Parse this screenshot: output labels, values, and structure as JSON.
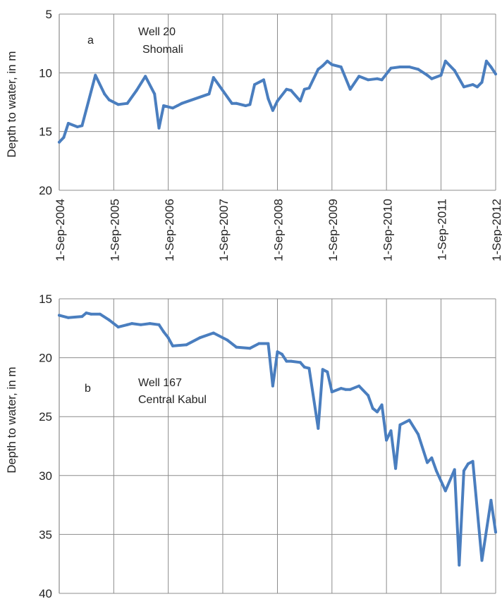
{
  "chart_data": [
    {
      "type": "line",
      "panel_letter": "a",
      "annotation": [
        "Well 20",
        "Shomali"
      ],
      "ylabel": "Depth to water, in m",
      "ylim": [
        5,
        20
      ],
      "y_inverted": true,
      "yticks": [
        5,
        10,
        15,
        20
      ],
      "ytick_labels": [
        "5",
        "10",
        "15",
        "20"
      ],
      "xlim": [
        "2004-09-01",
        "2012-09-01"
      ],
      "xtick_labels": [
        "1-Sep-2004",
        "1-Sep-2005",
        "1-Sep-2006",
        "1-Sep-2007",
        "1-Sep-2008",
        "1-Sep-2009",
        "1-Sep-2010",
        "1-Sep-2011",
        "1-Sep-2012"
      ],
      "grid": true,
      "color": "#4a7ebf",
      "x": [
        "2004-09-01",
        "2004-10-01",
        "2004-11-01",
        "2005-01-01",
        "2005-02-01",
        "2005-05-01",
        "2005-07-01",
        "2005-08-01",
        "2005-10-01",
        "2005-12-01",
        "2006-02-01",
        "2006-04-01",
        "2006-06-01",
        "2006-07-01",
        "2006-08-01",
        "2006-10-01",
        "2006-11-01",
        "2006-12-01",
        "2007-06-01",
        "2007-07-01",
        "2007-11-01",
        "2007-12-01",
        "2008-02-01",
        "2008-03-01",
        "2008-04-01",
        "2008-06-01",
        "2008-07-01",
        "2008-08-01",
        "2008-09-01",
        "2008-11-01",
        "2008-12-01",
        "2009-02-01",
        "2009-03-01",
        "2009-04-01",
        "2009-06-01",
        "2009-07-01",
        "2009-08-01",
        "2009-09-01",
        "2009-11-01",
        "2010-01-01",
        "2010-03-01",
        "2010-05-01",
        "2010-07-01",
        "2010-08-01",
        "2010-10-01",
        "2010-12-01",
        "2011-02-01",
        "2011-04-01",
        "2011-06-01",
        "2011-07-01",
        "2011-09-01",
        "2011-10-01",
        "2011-12-01",
        "2012-02-01",
        "2012-04-01",
        "2012-05-01",
        "2012-06-01",
        "2012-07-01",
        "2012-08-01",
        "2012-09-01"
      ],
      "values": [
        15.9,
        15.5,
        14.3,
        14.6,
        14.5,
        10.2,
        11.8,
        12.3,
        12.7,
        12.6,
        11.5,
        10.3,
        11.8,
        14.7,
        12.8,
        13.0,
        12.8,
        12.6,
        11.8,
        10.4,
        12.6,
        12.6,
        12.8,
        12.7,
        11.0,
        10.6,
        12.2,
        13.2,
        12.4,
        11.4,
        11.5,
        12.4,
        11.4,
        11.3,
        9.7,
        9.4,
        9.0,
        9.3,
        9.5,
        11.4,
        10.3,
        10.6,
        10.5,
        10.6,
        9.6,
        9.5,
        9.5,
        9.7,
        10.2,
        10.5,
        10.2,
        9.0,
        9.8,
        11.2,
        11.0,
        11.2,
        10.8,
        9.0,
        9.5,
        10.1
      ]
    },
    {
      "type": "line",
      "panel_letter": "b",
      "annotation": [
        "Well 167",
        "Central Kabul"
      ],
      "ylabel": "Depth to water, in m",
      "ylim": [
        15,
        40
      ],
      "y_inverted": true,
      "yticks": [
        15,
        20,
        25,
        30,
        35,
        40
      ],
      "ytick_labels": [
        "15",
        "20",
        "25",
        "30",
        "35",
        "40"
      ],
      "xlim": [
        "2004-09-01",
        "2012-09-01"
      ],
      "grid": true,
      "color": "#4a7ebf",
      "x": [
        "2004-09-01",
        "2004-11-01",
        "2005-02-01",
        "2005-03-01",
        "2005-04-01",
        "2005-06-01",
        "2005-08-01",
        "2005-10-01",
        "2005-12-01",
        "2006-01-01",
        "2006-03-01",
        "2006-05-01",
        "2006-07-01",
        "2006-08-01",
        "2006-09-01",
        "2006-10-01",
        "2007-01-01",
        "2007-04-01",
        "2007-07-01",
        "2007-10-01",
        "2007-12-01",
        "2008-03-01",
        "2008-05-01",
        "2008-07-01",
        "2008-08-01",
        "2008-09-01",
        "2008-10-01",
        "2008-11-01",
        "2008-12-01",
        "2009-02-01",
        "2009-03-01",
        "2009-04-01",
        "2009-06-01",
        "2009-07-01",
        "2009-08-01",
        "2009-09-01",
        "2009-11-01",
        "2009-12-01",
        "2010-01-01",
        "2010-03-01",
        "2010-05-01",
        "2010-06-01",
        "2010-07-01",
        "2010-08-01",
        "2010-09-01",
        "2010-10-01",
        "2010-11-01",
        "2010-12-01",
        "2011-02-01",
        "2011-04-01",
        "2011-06-01",
        "2011-07-01",
        "2011-08-01",
        "2011-10-01",
        "2011-12-01",
        "2012-01-01",
        "2012-02-01",
        "2012-03-01",
        "2012-04-01",
        "2012-06-01",
        "2012-08-01",
        "2012-09-01"
      ],
      "values": [
        16.4,
        16.6,
        16.5,
        16.2,
        16.3,
        16.3,
        16.8,
        17.4,
        17.2,
        17.1,
        17.2,
        17.1,
        17.2,
        17.8,
        18.3,
        19.0,
        18.9,
        18.3,
        17.9,
        18.5,
        19.1,
        19.2,
        18.8,
        18.8,
        22.4,
        19.5,
        19.7,
        20.3,
        20.3,
        20.4,
        20.8,
        20.9,
        26.0,
        21.0,
        21.2,
        22.9,
        22.6,
        22.7,
        22.7,
        22.4,
        23.2,
        24.3,
        24.6,
        24.0,
        27.0,
        26.2,
        29.4,
        25.7,
        25.3,
        26.5,
        28.9,
        28.5,
        29.6,
        31.3,
        29.5,
        37.6,
        29.6,
        29.0,
        28.8,
        37.2,
        32.1,
        34.8
      ]
    }
  ]
}
